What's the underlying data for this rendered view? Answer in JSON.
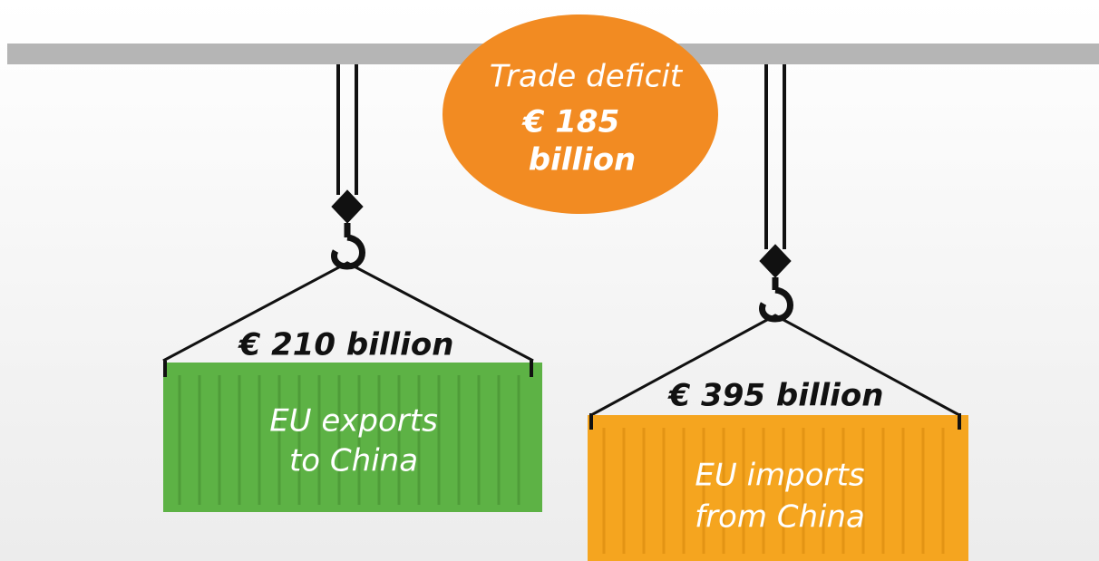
{
  "deficit": {
    "label": "Trade deficit",
    "amount_lines": [
      "€ 185",
      "billion"
    ]
  },
  "containers": [
    {
      "amount": "€ 210 billion",
      "label_lines": [
        "EU exports",
        "to China"
      ]
    },
    {
      "amount": "€ 395 billion",
      "label_lines": [
        "EU imports",
        "from China"
      ]
    }
  ]
}
